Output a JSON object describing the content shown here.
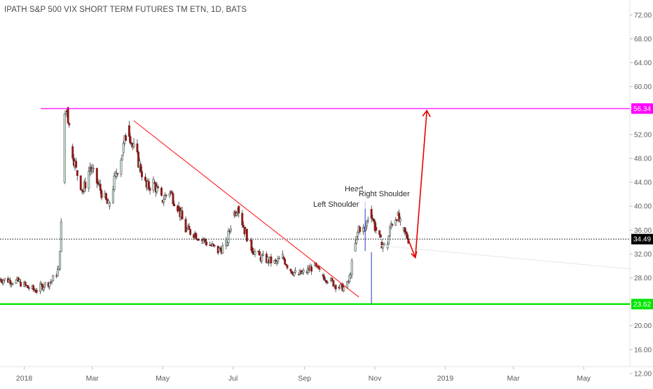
{
  "chart_data": {
    "type": "candlestick",
    "title": "IPATH S&P 500 VIX SHORT TERM FUTURES TM ETN, 1D, BATS",
    "y_axis": {
      "ylim": [
        10.0,
        74.5
      ],
      "tick_values": [
        12,
        16,
        20,
        24,
        28,
        32,
        36,
        40,
        44,
        48,
        52,
        56,
        60,
        64,
        68,
        72
      ],
      "tick_labels": [
        "12.00",
        "16.00",
        "20.00",
        "24.00",
        "28.00",
        "32.00",
        "36.00",
        "40.00",
        "44.00",
        "48.00",
        "52.00",
        "56.00",
        "60.00",
        "64.00",
        "68.00",
        "72.00"
      ]
    },
    "x_axis": {
      "tick_labels": [
        "2018",
        "Mar",
        "May",
        "Jul",
        "Sep",
        "Nov",
        "2019",
        "Mar",
        "May"
      ],
      "tick_dates": [
        "2018-01-01",
        "2018-03-01",
        "2018-05-01",
        "2018-07-01",
        "2018-09-01",
        "2018-11-01",
        "2019-01-01",
        "2019-03-01",
        "2019-05-01"
      ],
      "range": [
        "2017-12-11",
        "2019-06-10"
      ]
    },
    "series": [
      {
        "values": [
          {
            "date": "2017-12-11",
            "close": 27.8
          },
          {
            "date": "2017-12-20",
            "close": 27.6
          },
          {
            "date": "2017-12-29",
            "close": 27.3
          },
          {
            "date": "2018-01-05",
            "close": 26.4
          },
          {
            "date": "2018-01-12",
            "close": 25.9
          },
          {
            "date": "2018-01-19",
            "close": 26.8
          },
          {
            "date": "2018-01-26",
            "close": 27.5
          },
          {
            "date": "2018-02-01",
            "close": 29.5
          },
          {
            "date": "2018-02-05",
            "close": 44.0
          },
          {
            "date": "2018-02-06",
            "close": 55.5
          },
          {
            "date": "2018-02-08",
            "close": 56.5
          },
          {
            "date": "2018-02-12",
            "close": 50.0
          },
          {
            "date": "2018-02-16",
            "close": 46.0
          },
          {
            "date": "2018-02-22",
            "close": 42.5
          },
          {
            "date": "2018-02-28",
            "close": 46.5
          },
          {
            "date": "2018-03-06",
            "close": 44.0
          },
          {
            "date": "2018-03-12",
            "close": 41.5
          },
          {
            "date": "2018-03-16",
            "close": 40.0
          },
          {
            "date": "2018-03-22",
            "close": 45.0
          },
          {
            "date": "2018-03-28",
            "close": 49.0
          },
          {
            "date": "2018-04-02",
            "close": 53.5
          },
          {
            "date": "2018-04-06",
            "close": 50.0
          },
          {
            "date": "2018-04-12",
            "close": 47.0
          },
          {
            "date": "2018-04-18",
            "close": 43.0
          },
          {
            "date": "2018-04-24",
            "close": 44.0
          },
          {
            "date": "2018-05-01",
            "close": 41.0
          },
          {
            "date": "2018-05-08",
            "close": 42.5
          },
          {
            "date": "2018-05-15",
            "close": 40.0
          },
          {
            "date": "2018-05-22",
            "close": 36.0
          },
          {
            "date": "2018-05-29",
            "close": 35.5
          },
          {
            "date": "2018-06-05",
            "close": 34.5
          },
          {
            "date": "2018-06-12",
            "close": 33.5
          },
          {
            "date": "2018-06-19",
            "close": 32.5
          },
          {
            "date": "2018-06-26",
            "close": 33.5
          },
          {
            "date": "2018-07-02",
            "close": 38.5
          },
          {
            "date": "2018-07-06",
            "close": 40.0
          },
          {
            "date": "2018-07-12",
            "close": 36.0
          },
          {
            "date": "2018-07-18",
            "close": 33.0
          },
          {
            "date": "2018-07-25",
            "close": 31.5
          },
          {
            "date": "2018-08-01",
            "close": 31.0
          },
          {
            "date": "2018-08-08",
            "close": 30.5
          },
          {
            "date": "2018-08-14",
            "close": 31.5
          },
          {
            "date": "2018-08-20",
            "close": 29.5
          },
          {
            "date": "2018-08-27",
            "close": 28.5
          },
          {
            "date": "2018-09-03",
            "close": 29.0
          },
          {
            "date": "2018-09-10",
            "close": 30.0
          },
          {
            "date": "2018-09-17",
            "close": 28.5
          },
          {
            "date": "2018-09-24",
            "close": 27.5
          },
          {
            "date": "2018-10-01",
            "close": 26.5
          },
          {
            "date": "2018-10-08",
            "close": 26.3
          },
          {
            "date": "2018-10-11",
            "close": 28.0
          },
          {
            "date": "2018-10-15",
            "close": 32.5
          },
          {
            "date": "2018-10-19",
            "close": 36.5
          },
          {
            "date": "2018-10-24",
            "close": 36.0
          },
          {
            "date": "2018-10-29",
            "close": 39.5
          },
          {
            "date": "2018-11-02",
            "close": 36.5
          },
          {
            "date": "2018-11-07",
            "close": 34.0
          },
          {
            "date": "2018-11-12",
            "close": 33.0
          },
          {
            "date": "2018-11-16",
            "close": 37.0
          },
          {
            "date": "2018-11-21",
            "close": 38.5
          },
          {
            "date": "2018-11-26",
            "close": 36.0
          },
          {
            "date": "2018-12-01",
            "close": 34.49
          }
        ]
      }
    ],
    "current_price": 34.49,
    "annotations": {
      "levels": [
        {
          "label": "56.34",
          "value": 56.34,
          "color": "#ff00ff"
        },
        {
          "label": "23.62",
          "value": 23.62,
          "color": "#00e600"
        },
        {
          "label": "34.49",
          "value": 34.49,
          "color": "#000000"
        }
      ],
      "pattern_labels": [
        "Left Shoulder",
        "Head",
        "Right Shoulder"
      ],
      "colors": {
        "up": "#c9e6d8",
        "down": "#8b1a1a",
        "trendline": "#ff1a1a",
        "arrow": "#e60000",
        "target_line": "#4a56d8"
      },
      "grid": false
    }
  }
}
